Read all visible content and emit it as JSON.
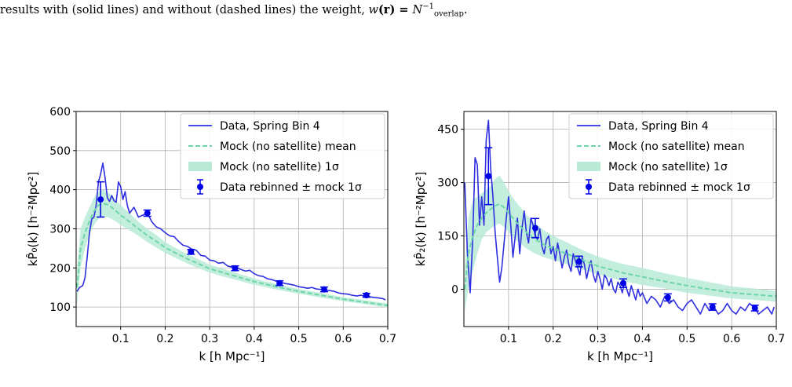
{
  "caption": {
    "text_pre": "results with (solid lines) and without (dashed lines) the weight, ",
    "w_symbol": "w",
    "r_symbol": "(r) = ",
    "n_symbol": "N",
    "n_sup": "−1",
    "n_sub": "overlap",
    "text_post": "."
  },
  "colors": {
    "data_line": "#2f2fe0",
    "mock_mean": "#6dd6a8",
    "mock_band": "#b9ead6",
    "points": "#0000e6",
    "grid": "#b0b0b0"
  },
  "chart_data": [
    {
      "type": "line",
      "xlabel": "k [h Mpc⁻¹]",
      "ylabel": "kP̂₀(k) [h⁻²Mpc²]",
      "xlim": [
        0.0,
        0.7
      ],
      "ylim": [
        50,
        600
      ],
      "xticks": [
        0.1,
        0.2,
        0.3,
        0.4,
        0.5,
        0.6,
        0.7
      ],
      "xtick_labels": [
        "0.1",
        "0.2",
        "0.3",
        "0.4",
        "0.5",
        "0.6",
        "0.7"
      ],
      "yticks": [
        100,
        200,
        300,
        400,
        500,
        600
      ],
      "ytick_labels": [
        "100",
        "200",
        "300",
        "400",
        "500",
        "600"
      ],
      "grid": true,
      "legend_position": "top-right",
      "legend": [
        "Data, Spring Bin 4",
        "Mock (no satellite) mean",
        "Mock (no satellite) 1σ",
        "Data rebinned ± mock 1σ"
      ],
      "series": [
        {
          "name": "Data, Spring Bin 4",
          "style": "solid",
          "x": [
            0.002,
            0.008,
            0.015,
            0.02,
            0.025,
            0.03,
            0.035,
            0.04,
            0.045,
            0.05,
            0.055,
            0.06,
            0.065,
            0.07,
            0.075,
            0.08,
            0.085,
            0.09,
            0.095,
            0.1,
            0.105,
            0.11,
            0.115,
            0.12,
            0.13,
            0.14,
            0.15,
            0.16,
            0.17,
            0.18,
            0.19,
            0.2,
            0.21,
            0.22,
            0.23,
            0.24,
            0.25,
            0.26,
            0.27,
            0.28,
            0.29,
            0.3,
            0.31,
            0.32,
            0.33,
            0.34,
            0.35,
            0.36,
            0.37,
            0.38,
            0.39,
            0.4,
            0.41,
            0.42,
            0.43,
            0.44,
            0.45,
            0.46,
            0.47,
            0.48,
            0.49,
            0.5,
            0.51,
            0.52,
            0.53,
            0.54,
            0.55,
            0.56,
            0.57,
            0.58,
            0.59,
            0.6,
            0.61,
            0.62,
            0.63,
            0.64,
            0.65,
            0.66,
            0.67,
            0.68,
            0.69,
            0.695
          ],
          "y": [
            140,
            150,
            155,
            175,
            230,
            290,
            325,
            330,
            360,
            420,
            440,
            468,
            430,
            380,
            370,
            385,
            372,
            368,
            420,
            408,
            375,
            395,
            360,
            340,
            355,
            330,
            335,
            340,
            318,
            305,
            300,
            290,
            282,
            280,
            268,
            258,
            255,
            248,
            245,
            232,
            230,
            220,
            218,
            212,
            214,
            205,
            202,
            200,
            196,
            192,
            194,
            185,
            180,
            178,
            172,
            170,
            166,
            163,
            160,
            158,
            156,
            152,
            150,
            148,
            150,
            146,
            145,
            143,
            142,
            140,
            136,
            134,
            133,
            130,
            128,
            130,
            127,
            126,
            124,
            123,
            121,
            118
          ]
        },
        {
          "name": "Mock (no satellite) mean",
          "style": "dashed",
          "x": [
            0.002,
            0.01,
            0.02,
            0.03,
            0.04,
            0.05,
            0.06,
            0.07,
            0.08,
            0.09,
            0.1,
            0.12,
            0.14,
            0.16,
            0.18,
            0.2,
            0.22,
            0.25,
            0.28,
            0.3,
            0.33,
            0.36,
            0.4,
            0.45,
            0.5,
            0.55,
            0.6,
            0.65,
            0.7
          ],
          "y": [
            150,
            250,
            290,
            320,
            345,
            360,
            365,
            362,
            355,
            345,
            335,
            318,
            300,
            283,
            268,
            252,
            240,
            223,
            208,
            198,
            188,
            178,
            165,
            152,
            140,
            130,
            120,
            112,
            104
          ]
        },
        {
          "name": "Mock (no satellite) 1σ",
          "style": "band",
          "x": [
            0.002,
            0.01,
            0.02,
            0.03,
            0.04,
            0.05,
            0.06,
            0.07,
            0.08,
            0.09,
            0.1,
            0.12,
            0.14,
            0.16,
            0.18,
            0.2,
            0.22,
            0.25,
            0.28,
            0.3,
            0.33,
            0.36,
            0.4,
            0.45,
            0.5,
            0.55,
            0.6,
            0.65,
            0.7
          ],
          "y_low": [
            100,
            200,
            250,
            285,
            310,
            325,
            330,
            330,
            325,
            318,
            310,
            296,
            282,
            266,
            252,
            238,
            227,
            211,
            197,
            188,
            178,
            169,
            157,
            145,
            134,
            124,
            115,
            107,
            99
          ],
          "y_high": [
            200,
            300,
            330,
            355,
            380,
            395,
            400,
            394,
            385,
            372,
            360,
            340,
            318,
            300,
            284,
            266,
            253,
            235,
            219,
            208,
            198,
            187,
            173,
            159,
            146,
            136,
            125,
            117,
            109
          ]
        },
        {
          "name": "Data rebinned ± mock 1σ",
          "style": "errorbar",
          "x": [
            0.055,
            0.16,
            0.258,
            0.357,
            0.457,
            0.557,
            0.652
          ],
          "y": [
            375,
            340,
            241,
            199,
            161,
            145,
            130
          ],
          "yerr": [
            45,
            8,
            6,
            6,
            6,
            6,
            5
          ]
        }
      ]
    },
    {
      "type": "line",
      "xlabel": "k [h Mpc⁻¹]",
      "ylabel": "kP̂₂(k) [h⁻²Mpc²]",
      "xlim": [
        0.0,
        0.7
      ],
      "ylim": [
        -105,
        500
      ],
      "xticks": [
        0.1,
        0.2,
        0.3,
        0.4,
        0.5,
        0.6,
        0.7
      ],
      "xtick_labels": [
        "0.1",
        "0.2",
        "0.3",
        "0.4",
        "0.5",
        "0.6",
        "0.7"
      ],
      "yticks": [
        0,
        150,
        300,
        450
      ],
      "ytick_labels": [
        "0",
        "150",
        "300",
        "450"
      ],
      "grid": true,
      "legend_position": "top-right",
      "legend": [
        "Data, Spring Bin 4",
        "Mock (no satellite) mean",
        "Mock (no satellite) 1σ",
        "Data rebinned ± mock 1σ"
      ],
      "series": [
        {
          "name": "Data, Spring Bin 4",
          "style": "solid",
          "x": [
            0.002,
            0.008,
            0.014,
            0.02,
            0.025,
            0.03,
            0.035,
            0.04,
            0.045,
            0.05,
            0.055,
            0.06,
            0.065,
            0.07,
            0.075,
            0.08,
            0.085,
            0.09,
            0.095,
            0.1,
            0.105,
            0.11,
            0.115,
            0.12,
            0.125,
            0.13,
            0.135,
            0.14,
            0.145,
            0.15,
            0.155,
            0.16,
            0.165,
            0.17,
            0.175,
            0.18,
            0.185,
            0.19,
            0.195,
            0.2,
            0.205,
            0.21,
            0.215,
            0.22,
            0.225,
            0.23,
            0.235,
            0.24,
            0.245,
            0.25,
            0.255,
            0.26,
            0.265,
            0.27,
            0.275,
            0.28,
            0.285,
            0.29,
            0.295,
            0.3,
            0.305,
            0.31,
            0.315,
            0.32,
            0.325,
            0.33,
            0.335,
            0.34,
            0.345,
            0.35,
            0.355,
            0.36,
            0.365,
            0.37,
            0.375,
            0.38,
            0.385,
            0.39,
            0.395,
            0.4,
            0.41,
            0.42,
            0.43,
            0.44,
            0.45,
            0.46,
            0.47,
            0.48,
            0.49,
            0.5,
            0.51,
            0.52,
            0.53,
            0.54,
            0.55,
            0.56,
            0.57,
            0.58,
            0.59,
            0.6,
            0.61,
            0.62,
            0.63,
            0.64,
            0.65,
            0.66,
            0.67,
            0.68,
            0.69,
            0.695
          ],
          "y": [
            300,
            100,
            -10,
            150,
            370,
            350,
            180,
            260,
            180,
            420,
            475,
            340,
            260,
            160,
            90,
            20,
            60,
            130,
            200,
            260,
            180,
            90,
            150,
            200,
            100,
            170,
            220,
            160,
            130,
            200,
            180,
            150,
            140,
            170,
            120,
            100,
            140,
            150,
            100,
            120,
            80,
            130,
            100,
            60,
            90,
            110,
            70,
            50,
            100,
            80,
            60,
            40,
            90,
            70,
            30,
            60,
            80,
            40,
            20,
            50,
            30,
            0,
            40,
            30,
            10,
            30,
            0,
            -10,
            20,
            10,
            -10,
            20,
            0,
            -20,
            10,
            -10,
            -30,
            0,
            -20,
            -10,
            -40,
            -20,
            -30,
            -50,
            -20,
            -40,
            -30,
            -50,
            -60,
            -40,
            -30,
            -50,
            -70,
            -40,
            -60,
            -50,
            -70,
            -60,
            -40,
            -60,
            -70,
            -50,
            -60,
            -40,
            -50,
            -70,
            -60,
            -50,
            -70,
            -50
          ]
        },
        {
          "name": "Mock (no satellite) mean",
          "style": "dashed",
          "x": [
            0.002,
            0.01,
            0.02,
            0.03,
            0.04,
            0.05,
            0.06,
            0.07,
            0.08,
            0.09,
            0.1,
            0.12,
            0.14,
            0.16,
            0.18,
            0.2,
            0.22,
            0.25,
            0.28,
            0.3,
            0.33,
            0.36,
            0.4,
            0.45,
            0.5,
            0.55,
            0.6,
            0.65,
            0.7
          ],
          "y": [
            0,
            100,
            150,
            180,
            200,
            215,
            225,
            235,
            240,
            230,
            215,
            185,
            160,
            140,
            125,
            115,
            105,
            90,
            75,
            65,
            55,
            45,
            35,
            22,
            10,
            0,
            -10,
            -15,
            -20
          ]
        },
        {
          "name": "Mock (no satellite) 1σ",
          "style": "band",
          "x": [
            0.002,
            0.01,
            0.02,
            0.03,
            0.04,
            0.05,
            0.06,
            0.07,
            0.08,
            0.09,
            0.1,
            0.12,
            0.14,
            0.16,
            0.18,
            0.2,
            0.22,
            0.25,
            0.28,
            0.3,
            0.33,
            0.36,
            0.4,
            0.45,
            0.5,
            0.55,
            0.6,
            0.65,
            0.7
          ],
          "y_low": [
            -60,
            0,
            50,
            100,
            140,
            160,
            170,
            180,
            185,
            175,
            160,
            135,
            115,
            100,
            90,
            82,
            75,
            62,
            50,
            42,
            32,
            22,
            12,
            2,
            -10,
            -18,
            -26,
            -30,
            -35
          ],
          "y_high": [
            60,
            200,
            250,
            260,
            270,
            280,
            290,
            310,
            320,
            300,
            275,
            240,
            210,
            185,
            165,
            150,
            138,
            120,
            102,
            92,
            80,
            70,
            60,
            45,
            32,
            20,
            8,
            2,
            -5
          ]
        },
        {
          "name": "Data rebinned ± mock 1σ",
          "style": "errorbar",
          "x": [
            0.055,
            0.16,
            0.258,
            0.357,
            0.457,
            0.557,
            0.652
          ],
          "y": [
            318,
            172,
            78,
            17,
            -23,
            -50,
            -53
          ],
          "yerr": [
            80,
            27,
            15,
            12,
            10,
            9,
            8
          ]
        }
      ]
    }
  ]
}
